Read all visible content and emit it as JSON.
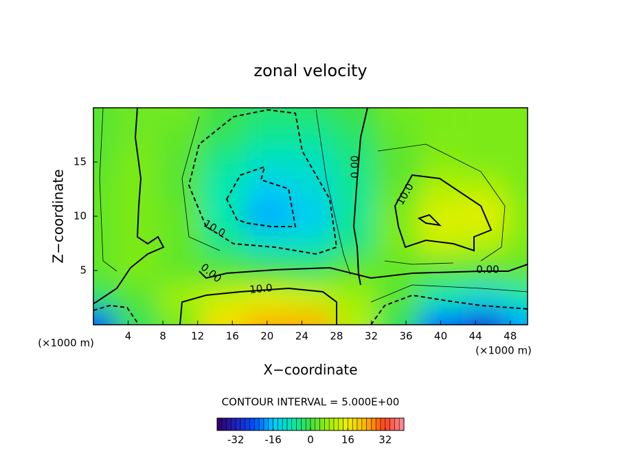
{
  "chart_data": {
    "type": "contour",
    "title": "zonal velocity",
    "xlabel": "X−coordinate",
    "ylabel": "Z−coordinate",
    "x_unit": "(×1000 m)",
    "x_unit_right": "(×1000 m)",
    "note": "CONTOUR INTERVAL = 5.000E+00",
    "xlim": [
      0,
      50
    ],
    "ylim": [
      0,
      20
    ],
    "xticks": [
      4,
      8,
      12,
      16,
      20,
      24,
      28,
      32,
      36,
      40,
      44,
      48
    ],
    "yticks": [
      5,
      10,
      15
    ],
    "clim": [
      -40,
      40
    ],
    "cticks": [
      -32,
      -16,
      0,
      16,
      32
    ],
    "colormap": [
      "#300060",
      "#2020c0",
      "#0050ff",
      "#00c8ff",
      "#00e8b0",
      "#40e040",
      "#a0f000",
      "#f0f000",
      "#ffb000",
      "#ff4020",
      "#ff90a0"
    ],
    "contour_levels": [
      -10,
      0,
      10
    ],
    "contour_labels": [
      "0.00",
      "10.0",
      "0.00",
      "10.0",
      "10.0",
      "0.00"
    ],
    "field": {
      "x": [
        0,
        5,
        10,
        15,
        20,
        25,
        30,
        35,
        40,
        45,
        50
      ],
      "y": [
        0,
        2.5,
        5,
        7.5,
        10,
        12.5,
        15,
        17.5,
        20
      ],
      "z": [
        [
          -25,
          -2,
          5,
          18,
          24,
          24,
          10,
          -2,
          -22,
          -28,
          -18
        ],
        [
          -3,
          2,
          8,
          12,
          14,
          12,
          8,
          2,
          -8,
          -12,
          -8
        ],
        [
          3,
          5,
          3,
          2,
          0,
          -2,
          3,
          3,
          2,
          2,
          3
        ],
        [
          3,
          5,
          3,
          -5,
          -10,
          -10,
          -5,
          5,
          12,
          10,
          5
        ],
        [
          3,
          5,
          3,
          -8,
          -18,
          -15,
          -6,
          5,
          14,
          15,
          6
        ],
        [
          3,
          5,
          2,
          -8,
          -15,
          -12,
          -6,
          3,
          10,
          10,
          5
        ],
        [
          2,
          5,
          2,
          -6,
          -10,
          -10,
          -5,
          2,
          6,
          5,
          5
        ],
        [
          2,
          4,
          3,
          -2,
          -6,
          -6,
          -3,
          3,
          5,
          5,
          5
        ],
        [
          2,
          4,
          4,
          0,
          -3,
          -3,
          0,
          4,
          5,
          5,
          5
        ]
      ]
    }
  }
}
